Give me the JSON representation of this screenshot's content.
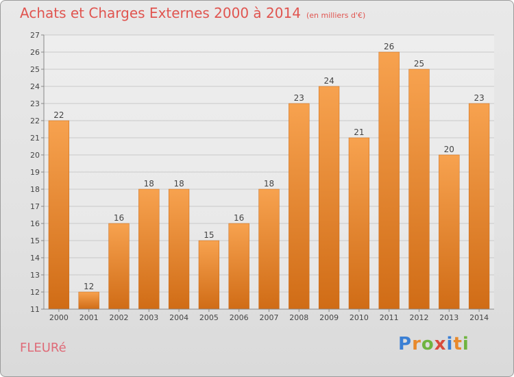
{
  "title": "Achats et Charges Externes 2000 à 2014",
  "unit": "(en milliers d'€)",
  "place": "FLEURé",
  "logo": [
    "P",
    "r",
    "o",
    "x",
    "i",
    "t",
    "i"
  ],
  "logo_colors": [
    "#3a7fd4",
    "#e8892b",
    "#6fb43f",
    "#d94b3c",
    "#3a7fd4",
    "#e8892b",
    "#6fb43f"
  ],
  "colors": {
    "bar_top": "#f7a24f",
    "bar_bottom": "#d06c16",
    "grid": "#c9c9c9",
    "axis_text": "#444444"
  },
  "chart_data": {
    "type": "bar",
    "categories": [
      "2000",
      "2001",
      "2002",
      "2003",
      "2004",
      "2005",
      "2006",
      "2007",
      "2008",
      "2009",
      "2010",
      "2011",
      "2012",
      "2013",
      "2014"
    ],
    "values": [
      22,
      12,
      16,
      18,
      18,
      15,
      16,
      18,
      23,
      24,
      21,
      26,
      25,
      20,
      23
    ],
    "ylim": [
      11,
      27
    ],
    "yticks": [
      11,
      12,
      13,
      14,
      15,
      16,
      17,
      18,
      19,
      20,
      21,
      22,
      23,
      24,
      25,
      26,
      27
    ],
    "grid": true
  }
}
